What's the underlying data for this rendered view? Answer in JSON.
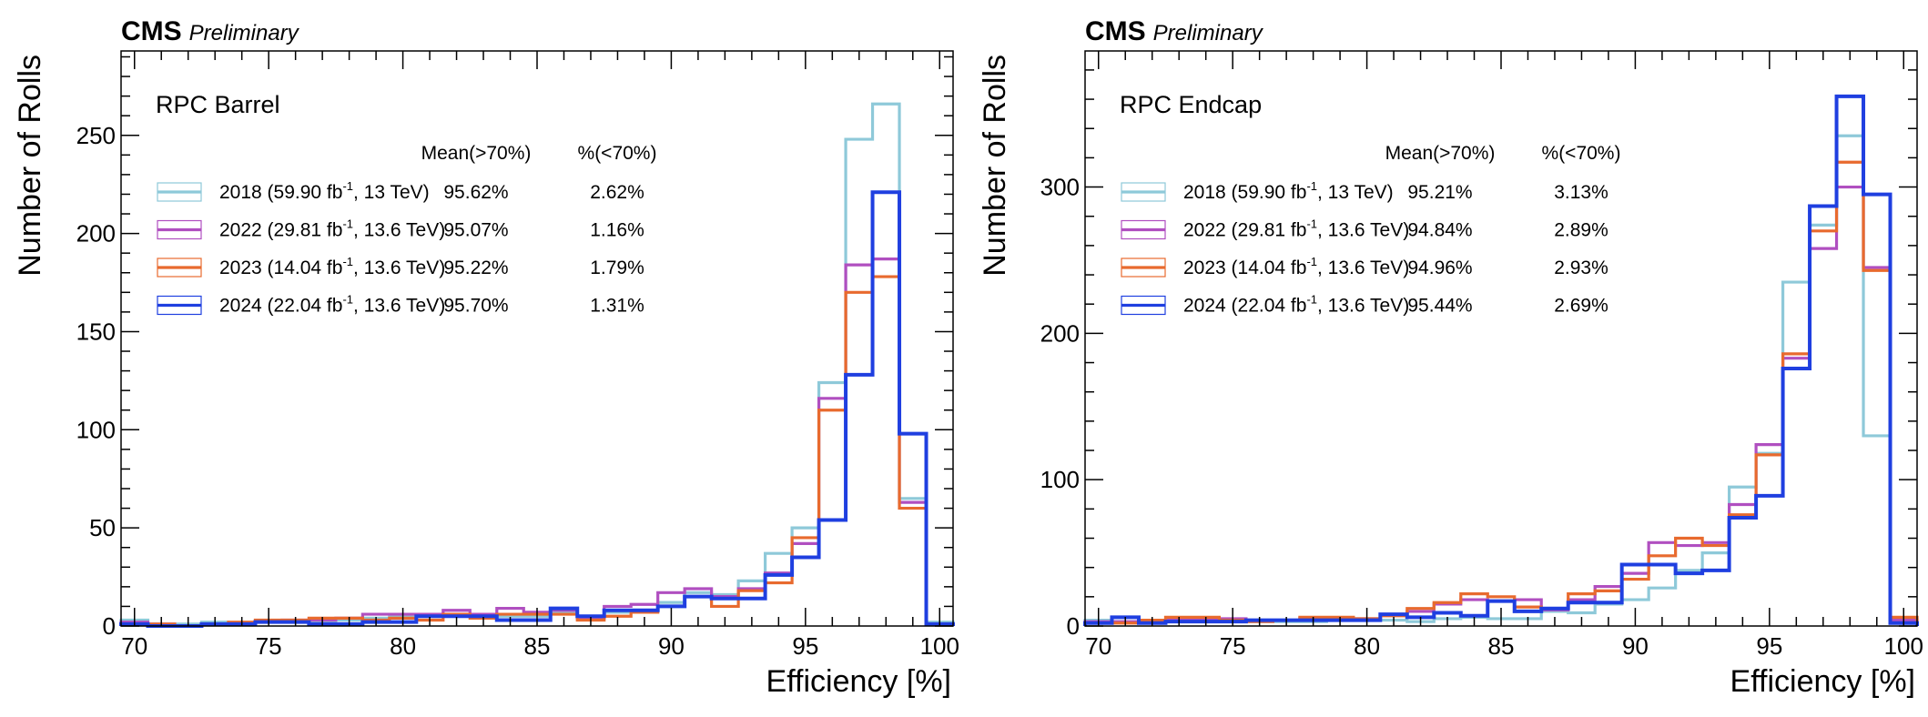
{
  "header": {
    "experiment": "CMS",
    "status": "Preliminary"
  },
  "chart_data": [
    {
      "type": "histogram-step",
      "label": "RPC Barrel",
      "xlabel": "Efficiency [%]",
      "ylabel": "Number of Rolls",
      "xlim": [
        69.5,
        100.5
      ],
      "ylim": [
        0,
        293
      ],
      "xticks": [
        70,
        75,
        80,
        85,
        90,
        95,
        100
      ],
      "yticks": [
        0,
        50,
        100,
        150,
        200,
        250
      ],
      "bin_edges": [
        69.5,
        70.5,
        71.5,
        72.5,
        73.5,
        74.5,
        75.5,
        76.5,
        77.5,
        78.5,
        79.5,
        80.5,
        81.5,
        82.5,
        83.5,
        84.5,
        85.5,
        86.5,
        87.5,
        88.5,
        89.5,
        90.5,
        91.5,
        92.5,
        93.5,
        94.5,
        95.5,
        96.5,
        97.5,
        98.5,
        99.5,
        100.5
      ],
      "legend": {
        "col_mean": "Mean(>70%)",
        "col_frac": "%(<70%)"
      },
      "series": [
        {
          "name": "2018",
          "lumi": "59.90",
          "energy": "13 TeV",
          "color": "#8ec9d9",
          "mean": "95.62%",
          "frac": "2.62%",
          "values": [
            3,
            1,
            1,
            2,
            1,
            2,
            2,
            2,
            3,
            4,
            5,
            5,
            6,
            6,
            5,
            5,
            7,
            5,
            7,
            8,
            12,
            17,
            16,
            23,
            37,
            50,
            124,
            248,
            266,
            65,
            2
          ]
        },
        {
          "name": "2022",
          "lumi": "29.81",
          "energy": "13.6 TeV",
          "color": "#b04fc0",
          "mean": "95.07%",
          "frac": "1.16%",
          "values": [
            2,
            1,
            0,
            1,
            1,
            2,
            3,
            3,
            4,
            6,
            6,
            6,
            8,
            6,
            9,
            7,
            8,
            4,
            10,
            11,
            17,
            19,
            15,
            19,
            27,
            42,
            116,
            184,
            187,
            63,
            1
          ]
        },
        {
          "name": "2023",
          "lumi": "14.04",
          "energy": "13.6 TeV",
          "color": "#e86a2e",
          "mean": "95.22%",
          "frac": "1.79%",
          "values": [
            1,
            1,
            0,
            1,
            2,
            3,
            3,
            4,
            4,
            3,
            4,
            3,
            6,
            4,
            6,
            6,
            6,
            3,
            5,
            7,
            10,
            15,
            10,
            18,
            22,
            45,
            110,
            170,
            178,
            60,
            1
          ]
        },
        {
          "name": "2024",
          "lumi": "22.04",
          "energy": "13.6 TeV",
          "color": "#1f3fe0",
          "mean": "95.70%",
          "frac": "1.31%",
          "values": [
            1,
            0,
            0,
            1,
            1,
            2,
            2,
            1,
            1,
            2,
            2,
            5,
            5,
            5,
            3,
            3,
            9,
            5,
            8,
            8,
            10,
            15,
            14,
            14,
            26,
            35,
            54,
            128,
            221,
            98,
            1
          ]
        }
      ]
    },
    {
      "type": "histogram-step",
      "label": "RPC Endcap",
      "xlabel": "Efficiency [%]",
      "ylabel": "Number of Rolls",
      "xlim": [
        69.5,
        100.5
      ],
      "ylim": [
        0,
        393
      ],
      "xticks": [
        70,
        75,
        80,
        85,
        90,
        95,
        100
      ],
      "yticks": [
        0,
        100,
        200,
        300
      ],
      "bin_edges": [
        69.5,
        70.5,
        71.5,
        72.5,
        73.5,
        74.5,
        75.5,
        76.5,
        77.5,
        78.5,
        79.5,
        80.5,
        81.5,
        82.5,
        83.5,
        84.5,
        85.5,
        86.5,
        87.5,
        88.5,
        89.5,
        90.5,
        91.5,
        92.5,
        93.5,
        94.5,
        95.5,
        96.5,
        97.5,
        98.5,
        99.5,
        100.5
      ],
      "legend": {
        "col_mean": "Mean(>70%)",
        "col_frac": "%(<70%)"
      },
      "series": [
        {
          "name": "2018",
          "lumi": "59.90",
          "energy": "13 TeV",
          "color": "#8ec9d9",
          "mean": "95.21%",
          "frac": "3.13%",
          "values": [
            4,
            3,
            2,
            3,
            3,
            3,
            3,
            3,
            3,
            4,
            4,
            4,
            3,
            5,
            6,
            5,
            5,
            10,
            9,
            15,
            18,
            26,
            38,
            50,
            95,
            118,
            235,
            274,
            335,
            130,
            5
          ]
        },
        {
          "name": "2022",
          "lumi": "29.81",
          "energy": "13.6 TeV",
          "color": "#b04fc0",
          "mean": "94.84%",
          "frac": "2.89%",
          "values": [
            3,
            3,
            3,
            4,
            5,
            5,
            4,
            4,
            5,
            5,
            5,
            8,
            10,
            15,
            18,
            17,
            18,
            11,
            18,
            27,
            36,
            57,
            55,
            57,
            83,
            124,
            183,
            258,
            300,
            245,
            4
          ]
        },
        {
          "name": "2023",
          "lumi": "14.04",
          "energy": "13.6 TeV",
          "color": "#e86a2e",
          "mean": "94.96%",
          "frac": "2.93%",
          "values": [
            2,
            2,
            4,
            6,
            6,
            4,
            3,
            4,
            6,
            6,
            5,
            7,
            12,
            16,
            22,
            20,
            13,
            12,
            22,
            24,
            32,
            48,
            60,
            55,
            76,
            117,
            186,
            270,
            317,
            243,
            6
          ]
        },
        {
          "name": "2024",
          "lumi": "22.04",
          "energy": "13.6 TeV",
          "color": "#1f3fe0",
          "mean": "95.44%",
          "frac": "2.69%",
          "values": [
            2,
            6,
            2,
            3,
            3,
            3,
            4,
            4,
            4,
            4,
            4,
            8,
            6,
            9,
            7,
            17,
            10,
            12,
            16,
            16,
            42,
            42,
            36,
            38,
            74,
            89,
            176,
            287,
            362,
            295,
            2
          ]
        }
      ]
    }
  ]
}
